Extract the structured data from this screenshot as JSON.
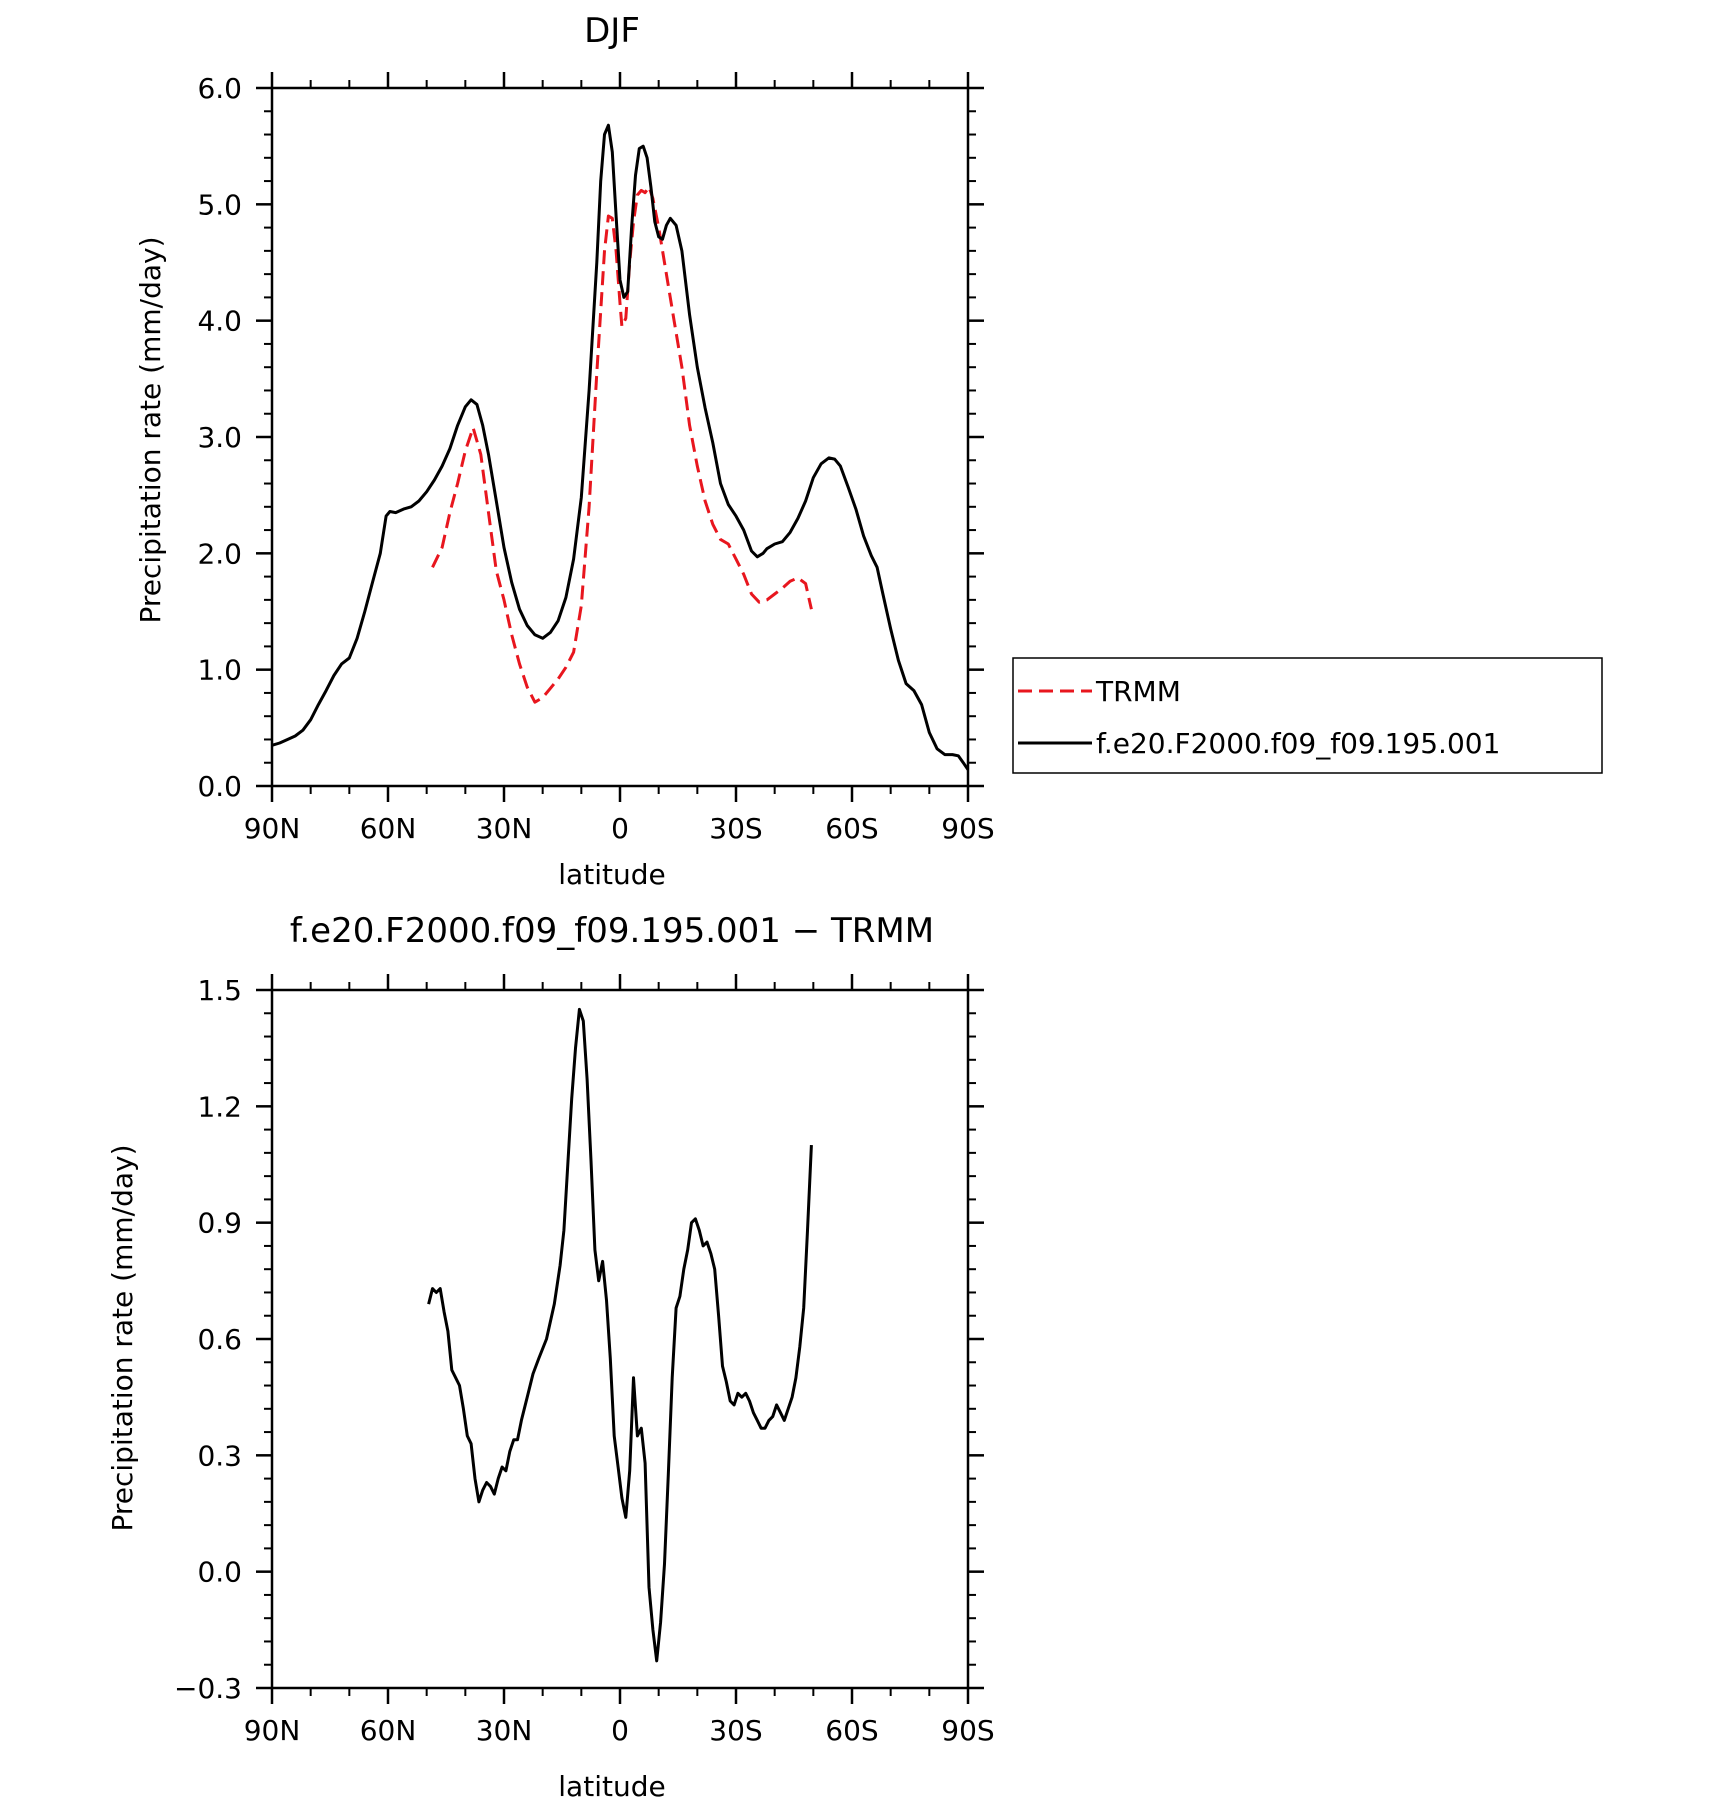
{
  "chart_data": [
    {
      "type": "line",
      "title": "DJF",
      "xlabel": "latitude",
      "ylabel": "Precipitation rate (mm/day)",
      "xlim": [
        90,
        -90
      ],
      "ylim": [
        0.0,
        6.0
      ],
      "x_ticks": [
        90,
        60,
        30,
        0,
        -30,
        -60,
        -90
      ],
      "x_tick_labels": [
        "90N",
        "60N",
        "30N",
        "0",
        "30S",
        "60S",
        "90S"
      ],
      "y_ticks": [
        0.0,
        1.0,
        2.0,
        3.0,
        4.0,
        5.0,
        6.0
      ],
      "y_tick_labels": [
        "0.0",
        "1.0",
        "2.0",
        "3.0",
        "4.0",
        "5.0",
        "6.0"
      ],
      "legend": {
        "placement": "right",
        "entries": [
          "TRMM",
          "f.e20.F2000.f09_f09.195.001"
        ]
      },
      "series": [
        {
          "name": "TRMM",
          "color": "#e8161e",
          "dash": true,
          "points": [
            [
              48.5,
              1.88
            ],
            [
              46,
              2.05
            ],
            [
              44,
              2.35
            ],
            [
              42,
              2.6
            ],
            [
              40,
              2.88
            ],
            [
              38,
              3.08
            ],
            [
              36,
              2.85
            ],
            [
              34,
              2.35
            ],
            [
              32,
              1.85
            ],
            [
              30,
              1.6
            ],
            [
              28,
              1.3
            ],
            [
              26,
              1.05
            ],
            [
              24,
              0.85
            ],
            [
              22,
              0.72
            ],
            [
              20,
              0.76
            ],
            [
              18,
              0.84
            ],
            [
              16,
              0.92
            ],
            [
              14,
              1.02
            ],
            [
              12,
              1.15
            ],
            [
              10,
              1.55
            ],
            [
              8,
              2.4
            ],
            [
              6,
              3.55
            ],
            [
              4,
              4.6
            ],
            [
              3,
              4.9
            ],
            [
              2,
              4.88
            ],
            [
              1,
              4.6
            ],
            [
              0,
              4.15
            ],
            [
              -0.5,
              3.95
            ],
            [
              -1.5,
              4.02
            ],
            [
              -2.5,
              4.5
            ],
            [
              -3.5,
              4.85
            ],
            [
              -4.5,
              5.08
            ],
            [
              -5.5,
              5.12
            ],
            [
              -6.5,
              5.1
            ],
            [
              -7.5,
              5.15
            ],
            [
              -8.5,
              5.05
            ],
            [
              -10,
              4.8
            ],
            [
              -12,
              4.4
            ],
            [
              -14,
              4.0
            ],
            [
              -16,
              3.6
            ],
            [
              -18,
              3.1
            ],
            [
              -20,
              2.75
            ],
            [
              -22,
              2.45
            ],
            [
              -24,
              2.25
            ],
            [
              -26,
              2.12
            ],
            [
              -28,
              2.08
            ],
            [
              -30,
              1.95
            ],
            [
              -32,
              1.82
            ],
            [
              -34,
              1.65
            ],
            [
              -36,
              1.58
            ],
            [
              -38,
              1.6
            ],
            [
              -40,
              1.65
            ],
            [
              -42,
              1.7
            ],
            [
              -44,
              1.76
            ],
            [
              -46,
              1.79
            ],
            [
              -48,
              1.74
            ],
            [
              -49.5,
              1.52
            ]
          ]
        },
        {
          "name": "f.e20.F2000.f09_f09.195.001",
          "color": "#000000",
          "dash": false,
          "points": [
            [
              90,
              0.35
            ],
            [
              88,
              0.37
            ],
            [
              86,
              0.4
            ],
            [
              84,
              0.43
            ],
            [
              82,
              0.48
            ],
            [
              80,
              0.57
            ],
            [
              78,
              0.7
            ],
            [
              76,
              0.82
            ],
            [
              74,
              0.95
            ],
            [
              72,
              1.05
            ],
            [
              70,
              1.1
            ],
            [
              68,
              1.27
            ],
            [
              66,
              1.5
            ],
            [
              64,
              1.75
            ],
            [
              62,
              2.0
            ],
            [
              60.5,
              2.32
            ],
            [
              59.5,
              2.36
            ],
            [
              58,
              2.35
            ],
            [
              56,
              2.38
            ],
            [
              54,
              2.4
            ],
            [
              52,
              2.45
            ],
            [
              50,
              2.53
            ],
            [
              48,
              2.63
            ],
            [
              46,
              2.75
            ],
            [
              44,
              2.9
            ],
            [
              42,
              3.1
            ],
            [
              40,
              3.26
            ],
            [
              38.5,
              3.32
            ],
            [
              37,
              3.28
            ],
            [
              35.5,
              3.1
            ],
            [
              34,
              2.85
            ],
            [
              32,
              2.45
            ],
            [
              30,
              2.05
            ],
            [
              28,
              1.75
            ],
            [
              26,
              1.52
            ],
            [
              24,
              1.38
            ],
            [
              22,
              1.3
            ],
            [
              20,
              1.27
            ],
            [
              18,
              1.32
            ],
            [
              16,
              1.42
            ],
            [
              14,
              1.62
            ],
            [
              12,
              1.95
            ],
            [
              10,
              2.48
            ],
            [
              8,
              3.4
            ],
            [
              6,
              4.5
            ],
            [
              5,
              5.2
            ],
            [
              4,
              5.6
            ],
            [
              3,
              5.68
            ],
            [
              2,
              5.45
            ],
            [
              1,
              4.9
            ],
            [
              0,
              4.35
            ],
            [
              -1,
              4.2
            ],
            [
              -2,
              4.25
            ],
            [
              -3,
              4.8
            ],
            [
              -4,
              5.25
            ],
            [
              -5,
              5.48
            ],
            [
              -6,
              5.5
            ],
            [
              -7,
              5.4
            ],
            [
              -8,
              5.15
            ],
            [
              -9,
              4.85
            ],
            [
              -10,
              4.72
            ],
            [
              -11,
              4.7
            ],
            [
              -12,
              4.82
            ],
            [
              -13,
              4.88
            ],
            [
              -14.5,
              4.82
            ],
            [
              -16,
              4.6
            ],
            [
              -18,
              4.05
            ],
            [
              -20,
              3.6
            ],
            [
              -22,
              3.25
            ],
            [
              -24,
              2.95
            ],
            [
              -26,
              2.6
            ],
            [
              -28,
              2.42
            ],
            [
              -30,
              2.32
            ],
            [
              -32,
              2.2
            ],
            [
              -34,
              2.02
            ],
            [
              -35.5,
              1.97
            ],
            [
              -37,
              2.0
            ],
            [
              -38,
              2.04
            ],
            [
              -40,
              2.08
            ],
            [
              -42,
              2.1
            ],
            [
              -44,
              2.18
            ],
            [
              -46,
              2.3
            ],
            [
              -48,
              2.45
            ],
            [
              -50,
              2.65
            ],
            [
              -52,
              2.77
            ],
            [
              -54,
              2.82
            ],
            [
              -55.5,
              2.81
            ],
            [
              -57,
              2.75
            ],
            [
              -59,
              2.57
            ],
            [
              -61,
              2.38
            ],
            [
              -63,
              2.15
            ],
            [
              -65,
              1.98
            ],
            [
              -66.5,
              1.88
            ],
            [
              -68,
              1.65
            ],
            [
              -70,
              1.35
            ],
            [
              -72,
              1.08
            ],
            [
              -74,
              0.88
            ],
            [
              -76,
              0.82
            ],
            [
              -78,
              0.7
            ],
            [
              -80,
              0.46
            ],
            [
              -82,
              0.32
            ],
            [
              -84,
              0.27
            ],
            [
              -86,
              0.27
            ],
            [
              -87.5,
              0.26
            ],
            [
              -89,
              0.19
            ],
            [
              -90,
              0.14
            ]
          ]
        }
      ]
    },
    {
      "type": "line",
      "title": "f.e20.F2000.f09_f09.195.001 − TRMM",
      "xlabel": "latitude",
      "ylabel": "Precipitation rate (mm/day)",
      "xlim": [
        90,
        -90
      ],
      "ylim": [
        -0.3,
        1.5
      ],
      "x_ticks": [
        90,
        60,
        30,
        0,
        -30,
        -60,
        -90
      ],
      "x_tick_labels": [
        "90N",
        "60N",
        "30N",
        "0",
        "30S",
        "60S",
        "90S"
      ],
      "y_ticks": [
        -0.3,
        0.0,
        0.3,
        0.6,
        0.9,
        1.2,
        1.5
      ],
      "y_tick_labels": [
        "−0.3",
        "0.0",
        "0.3",
        "0.6",
        "0.9",
        "1.2",
        "1.5"
      ],
      "series": [
        {
          "color": "#000000",
          "dash": false,
          "points": [
            [
              49.5,
              0.69
            ],
            [
              48.5,
              0.73
            ],
            [
              47.5,
              0.72
            ],
            [
              46.5,
              0.73
            ],
            [
              45.5,
              0.67
            ],
            [
              44.5,
              0.62
            ],
            [
              43.5,
              0.52
            ],
            [
              42.5,
              0.5
            ],
            [
              41.5,
              0.48
            ],
            [
              40.5,
              0.42
            ],
            [
              39.5,
              0.35
            ],
            [
              38.5,
              0.33
            ],
            [
              37.5,
              0.24
            ],
            [
              36.5,
              0.18
            ],
            [
              35.5,
              0.21
            ],
            [
              34.5,
              0.23
            ],
            [
              33.5,
              0.22
            ],
            [
              32.5,
              0.2
            ],
            [
              31.5,
              0.24
            ],
            [
              30.5,
              0.27
            ],
            [
              29.5,
              0.26
            ],
            [
              28.5,
              0.31
            ],
            [
              27.5,
              0.34
            ],
            [
              26.5,
              0.34
            ],
            [
              25.5,
              0.39
            ],
            [
              24,
              0.45
            ],
            [
              22.5,
              0.51
            ],
            [
              21,
              0.55
            ],
            [
              19,
              0.6
            ],
            [
              17,
              0.69
            ],
            [
              15.5,
              0.79
            ],
            [
              14.5,
              0.88
            ],
            [
              13.5,
              1.05
            ],
            [
              12.5,
              1.22
            ],
            [
              11.5,
              1.35
            ],
            [
              10.5,
              1.45
            ],
            [
              9.5,
              1.42
            ],
            [
              8.5,
              1.27
            ],
            [
              7.5,
              1.06
            ],
            [
              6.5,
              0.83
            ],
            [
              5.5,
              0.75
            ],
            [
              4.5,
              0.8
            ],
            [
              3.5,
              0.7
            ],
            [
              2.5,
              0.55
            ],
            [
              1.5,
              0.35
            ],
            [
              0.5,
              0.27
            ],
            [
              -0.5,
              0.19
            ],
            [
              -1.5,
              0.14
            ],
            [
              -2.5,
              0.26
            ],
            [
              -3.5,
              0.5
            ],
            [
              -4.5,
              0.35
            ],
            [
              -5.5,
              0.37
            ],
            [
              -6.5,
              0.28
            ],
            [
              -7.5,
              -0.04
            ],
            [
              -8.5,
              -0.15
            ],
            [
              -9.5,
              -0.23
            ],
            [
              -10.5,
              -0.13
            ],
            [
              -11.5,
              0.02
            ],
            [
              -12.5,
              0.25
            ],
            [
              -13.5,
              0.5
            ],
            [
              -14.5,
              0.68
            ],
            [
              -15.5,
              0.71
            ],
            [
              -16.5,
              0.78
            ],
            [
              -17.5,
              0.83
            ],
            [
              -18.5,
              0.9
            ],
            [
              -19.5,
              0.91
            ],
            [
              -20.5,
              0.88
            ],
            [
              -21.5,
              0.84
            ],
            [
              -22.5,
              0.85
            ],
            [
              -23.5,
              0.82
            ],
            [
              -24.5,
              0.78
            ],
            [
              -25.5,
              0.66
            ],
            [
              -26.5,
              0.53
            ],
            [
              -27.5,
              0.49
            ],
            [
              -28.5,
              0.44
            ],
            [
              -29.5,
              0.43
            ],
            [
              -30.5,
              0.46
            ],
            [
              -31.5,
              0.45
            ],
            [
              -32.5,
              0.46
            ],
            [
              -33.5,
              0.44
            ],
            [
              -34.5,
              0.41
            ],
            [
              -35.5,
              0.39
            ],
            [
              -36.5,
              0.37
            ],
            [
              -37.5,
              0.37
            ],
            [
              -38.5,
              0.39
            ],
            [
              -39.5,
              0.4
            ],
            [
              -40.5,
              0.43
            ],
            [
              -41.5,
              0.41
            ],
            [
              -42.5,
              0.39
            ],
            [
              -43.5,
              0.42
            ],
            [
              -44.5,
              0.45
            ],
            [
              -45.5,
              0.5
            ],
            [
              -46.5,
              0.58
            ],
            [
              -47.5,
              0.68
            ],
            [
              -48.5,
              0.88
            ],
            [
              -49.5,
              1.1
            ]
          ]
        }
      ]
    }
  ]
}
